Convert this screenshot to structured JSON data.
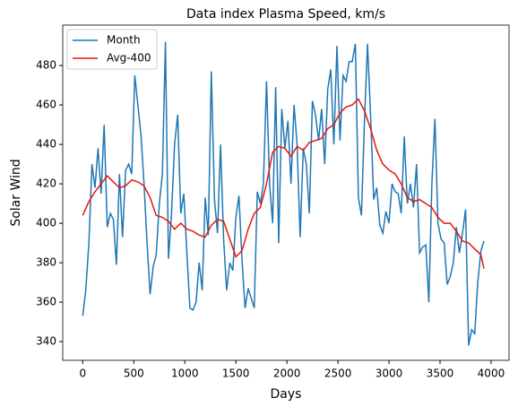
{
  "chart_data": {
    "type": "line",
    "title": "Data index Plasma Speed, km/s",
    "xlabel": "Days",
    "ylabel": "Solar Wind",
    "xlim": [
      -196,
      4176
    ],
    "ylim": [
      330.5,
      500.5
    ],
    "xticks": [
      0,
      500,
      1000,
      1500,
      2000,
      2500,
      3000,
      3500,
      4000
    ],
    "yticks": [
      340,
      360,
      380,
      400,
      420,
      440,
      460,
      480
    ],
    "legend": "upper left",
    "grid": false,
    "series": [
      {
        "name": "Month",
        "color": "#1f77b4",
        "x": [
          0,
          30,
          60,
          90,
          120,
          150,
          180,
          210,
          240,
          270,
          300,
          330,
          360,
          390,
          420,
          450,
          480,
          510,
          540,
          570,
          600,
          630,
          660,
          690,
          720,
          750,
          780,
          810,
          840,
          870,
          900,
          930,
          960,
          990,
          1020,
          1050,
          1080,
          1110,
          1140,
          1170,
          1200,
          1230,
          1260,
          1290,
          1320,
          1350,
          1380,
          1410,
          1440,
          1470,
          1500,
          1530,
          1560,
          1590,
          1620,
          1650,
          1680,
          1710,
          1740,
          1770,
          1800,
          1830,
          1860,
          1890,
          1920,
          1950,
          1980,
          2010,
          2040,
          2070,
          2100,
          2130,
          2160,
          2190,
          2220,
          2250,
          2280,
          2310,
          2340,
          2370,
          2400,
          2430,
          2460,
          2490,
          2520,
          2550,
          2580,
          2610,
          2640,
          2670,
          2700,
          2730,
          2760,
          2790,
          2820,
          2850,
          2880,
          2910,
          2940,
          2970,
          3000,
          3030,
          3060,
          3090,
          3120,
          3150,
          3180,
          3210,
          3240,
          3270,
          3300,
          3330,
          3360,
          3390,
          3420,
          3450,
          3480,
          3510,
          3540,
          3570,
          3600,
          3630,
          3660,
          3690,
          3720,
          3750,
          3780,
          3810,
          3840,
          3870,
          3900,
          3930
        ],
        "values": [
          353,
          366,
          390,
          430,
          418,
          438,
          415,
          450,
          398,
          405,
          402,
          379,
          425,
          393,
          427,
          430,
          425,
          475,
          460,
          445,
          420,
          390,
          364,
          378,
          384,
          410,
          425,
          492,
          382,
          405,
          440,
          455,
          405,
          415,
          385,
          357,
          356,
          360,
          380,
          366,
          413,
          394,
          477,
          412,
          395,
          440,
          392,
          366,
          380,
          376,
          403,
          414,
          382,
          357,
          367,
          362,
          357,
          416,
          410,
          420,
          472,
          420,
          400,
          469,
          390,
          458,
          438,
          452,
          420,
          460,
          440,
          393,
          438,
          430,
          405,
          462,
          455,
          442,
          458,
          430,
          468,
          478,
          440,
          490,
          442,
          475,
          472,
          482,
          482,
          491,
          413,
          404,
          452,
          491,
          455,
          412,
          418,
          399,
          395,
          406,
          400,
          420,
          416,
          415,
          405,
          444,
          410,
          420,
          408,
          430,
          385,
          388,
          389,
          360,
          420,
          453,
          400,
          392,
          390,
          369,
          373,
          380,
          398,
          385,
          395,
          407,
          338,
          346,
          344,
          370,
          386,
          391
        ]
      },
      {
        "name": "Avg-400",
        "color": "#e8160c",
        "x": [
          0,
          60,
          120,
          180,
          240,
          300,
          360,
          420,
          480,
          540,
          600,
          660,
          720,
          780,
          840,
          900,
          960,
          1020,
          1080,
          1140,
          1200,
          1260,
          1320,
          1380,
          1440,
          1500,
          1560,
          1620,
          1680,
          1740,
          1800,
          1860,
          1920,
          1980,
          2040,
          2100,
          2160,
          2220,
          2280,
          2340,
          2400,
          2460,
          2520,
          2580,
          2640,
          2700,
          2760,
          2820,
          2880,
          2940,
          3000,
          3060,
          3120,
          3180,
          3240,
          3300,
          3360,
          3420,
          3480,
          3540,
          3600,
          3660,
          3720,
          3780,
          3840,
          3900,
          3930
        ],
        "values": [
          404,
          411,
          416,
          420,
          424,
          421,
          418,
          419,
          422,
          421,
          419,
          413,
          404,
          403,
          401,
          397,
          400,
          397,
          396,
          394,
          393,
          399,
          402,
          401,
          392,
          383,
          386,
          397,
          405,
          408,
          420,
          436,
          439,
          438,
          434,
          439,
          437,
          441,
          442,
          443,
          448,
          450,
          456,
          459,
          460,
          463,
          457,
          448,
          437,
          430,
          427,
          425,
          420,
          413,
          411,
          412,
          410,
          408,
          403,
          400,
          400,
          396,
          391,
          390,
          387,
          384,
          377
        ]
      }
    ]
  }
}
